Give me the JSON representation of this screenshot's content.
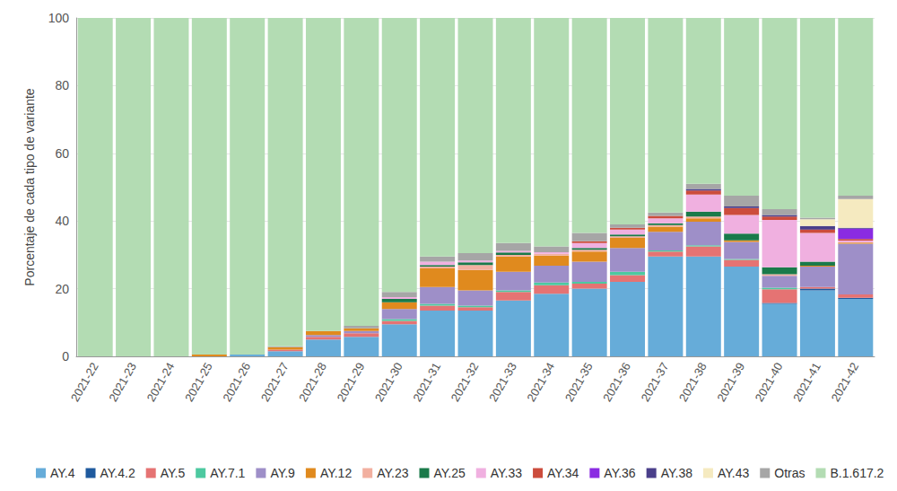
{
  "chart_data": {
    "type": "bar",
    "stacked": true,
    "grid": true,
    "legend": "bottom",
    "y_label": "Porcentaje de cada tipo de variante",
    "categories": [
      "2021-22",
      "2021-23",
      "2021-24",
      "2021-25",
      "2021-26",
      "2021-27",
      "2021-28",
      "2021-29",
      "2021-30",
      "2021-31",
      "2021-32",
      "2021-33",
      "2021-34",
      "2021-35",
      "2021-36",
      "2021-37",
      "2021-38",
      "2021-39",
      "2021-40",
      "2021-41",
      "2021-42"
    ],
    "ylim": [
      0,
      100
    ],
    "yticks": [
      0,
      20,
      40,
      60,
      80,
      100
    ],
    "series": [
      {
        "name": "AY.4",
        "color": "#66acd9",
        "values": [
          0,
          0,
          0,
          0,
          0.5,
          1.5,
          5,
          5.8,
          9.5,
          13.5,
          13.5,
          16.5,
          18.5,
          20,
          22,
          29.5,
          29.5,
          26.5,
          15.5,
          19.5,
          17
        ]
      },
      {
        "name": "AY.4.2",
        "color": "#1f5a9e",
        "values": [
          0,
          0,
          0,
          0,
          0,
          0,
          0,
          0,
          0,
          0,
          0,
          0,
          0,
          0,
          0,
          0,
          0,
          0,
          0.3,
          0.5,
          0.3
        ]
      },
      {
        "name": "AY.5",
        "color": "#e57373",
        "values": [
          0,
          0,
          0,
          0,
          0,
          0.5,
          0.8,
          1,
          1,
          1.5,
          1,
          2.5,
          2.5,
          1.5,
          2,
          1.5,
          3,
          2,
          4,
          0.5,
          1
        ]
      },
      {
        "name": "AY.7.1",
        "color": "#4dc9a0",
        "values": [
          0,
          0,
          0,
          0,
          0,
          0,
          0,
          0,
          0.5,
          0.5,
          0.5,
          0.5,
          0.8,
          0.5,
          1,
          0.3,
          0.3,
          0.3,
          0.5,
          0,
          0
        ]
      },
      {
        "name": "AY.9",
        "color": "#9e8fc8",
        "values": [
          0,
          0,
          0,
          0,
          0,
          0,
          0.5,
          0.7,
          3,
          5,
          4.5,
          5.5,
          5,
          6,
          7,
          5.5,
          7,
          5,
          3.5,
          6,
          15
        ]
      },
      {
        "name": "AY.12",
        "color": "#e08a1e",
        "values": [
          0,
          0,
          0,
          0.5,
          0,
          0.7,
          1.2,
          0.8,
          2,
          5.5,
          6,
          4.5,
          3,
          3,
          3,
          1.5,
          1,
          0.5,
          0,
          0.3,
          0.3
        ]
      },
      {
        "name": "AY.23",
        "color": "#f2b0a0",
        "values": [
          0,
          0,
          0,
          0,
          0,
          0,
          0,
          0,
          0,
          0.5,
          1.5,
          0.5,
          0.5,
          0.5,
          0.5,
          0.5,
          0.5,
          0,
          0.5,
          0,
          0.1
        ]
      },
      {
        "name": "AY.25",
        "color": "#1a7a4a",
        "values": [
          0,
          0,
          0,
          0,
          0,
          0,
          0,
          0,
          1,
          0.5,
          0.8,
          0.7,
          0,
          0.5,
          0.5,
          0.5,
          1.5,
          2,
          2,
          1.2,
          0
        ]
      },
      {
        "name": "AY.33",
        "color": "#f0b0e0",
        "values": [
          0,
          0,
          0,
          0,
          0,
          0,
          0,
          0,
          0.5,
          1,
          0.5,
          0.5,
          0.5,
          1.5,
          1.5,
          1.5,
          5,
          5.5,
          14,
          8.5,
          0.5
        ]
      },
      {
        "name": "AY.34",
        "color": "#cc4c3c",
        "values": [
          0,
          0,
          0,
          0,
          0,
          0,
          0,
          0,
          0,
          0,
          0,
          0,
          0,
          0.5,
          0.5,
          0.7,
          1.2,
          2,
          1,
          1,
          0.5
        ]
      },
      {
        "name": "AY.36",
        "color": "#8a2be2",
        "values": [
          0,
          0,
          0,
          0,
          0,
          0,
          0,
          0,
          0,
          0,
          0,
          0,
          0,
          0,
          0,
          0,
          0,
          0,
          0,
          0,
          3
        ]
      },
      {
        "name": "AY.38",
        "color": "#4a3f8a",
        "values": [
          0,
          0,
          0,
          0,
          0,
          0,
          0,
          0,
          0,
          0,
          0,
          0,
          0,
          0,
          0,
          0,
          0.5,
          0.5,
          0.5,
          1,
          0.3
        ]
      },
      {
        "name": "AY.43",
        "color": "#f5eac0",
        "values": [
          0,
          0,
          0,
          0,
          0,
          0,
          0,
          0,
          0,
          0,
          0,
          0,
          0,
          0,
          0,
          0,
          0,
          0,
          0,
          2,
          8.5
        ]
      },
      {
        "name": "Otras",
        "color": "#a6a6a6",
        "values": [
          0,
          0,
          0,
          0,
          0,
          0.3,
          0,
          0.7,
          1.5,
          1.5,
          2.2,
          2.3,
          1.7,
          2.5,
          1,
          1,
          1.5,
          3.2,
          1.7,
          0.5,
          1
        ]
      },
      {
        "name": "B.1.617.2",
        "color": "#b3dcb3",
        "values": [
          100,
          100,
          100,
          99.5,
          99.5,
          97,
          92.5,
          91,
          81,
          70.5,
          69.5,
          66.5,
          67.5,
          63.5,
          61,
          57.5,
          49,
          52.5,
          56.5,
          59,
          52.5
        ]
      }
    ]
  }
}
